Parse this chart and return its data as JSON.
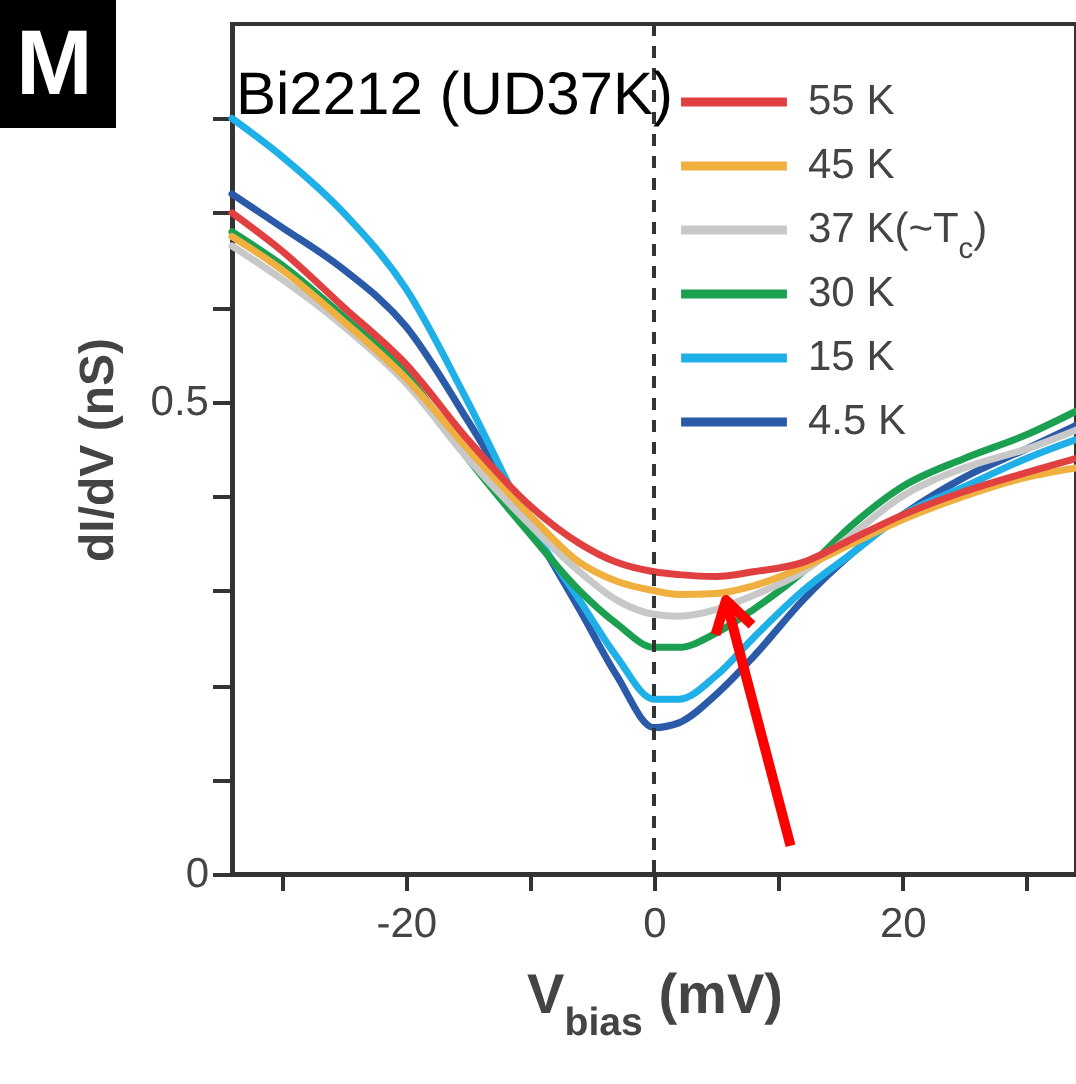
{
  "chart_data": {
    "type": "line",
    "title": "Bi2212 (UD37K)",
    "xlabel": "V$_{bias}$ (mV)",
    "ylabel": "dI/dV (nS)",
    "annotations": [
      "M"
    ],
    "x": [
      -34,
      -30,
      -25,
      -20,
      -15,
      -10,
      -6,
      -3,
      0,
      2,
      5,
      8,
      12,
      16,
      20,
      25,
      30,
      34
    ],
    "series": [
      {
        "name": "55 K",
        "color": "#e0403f",
        "values": [
          0.7,
          0.66,
          0.6,
          0.54,
          0.46,
          0.39,
          0.35,
          0.33,
          0.32,
          0.317,
          0.315,
          0.32,
          0.33,
          0.355,
          0.38,
          0.405,
          0.425,
          0.44
        ]
      },
      {
        "name": "45 K",
        "color": "#f0b040",
        "values": [
          0.675,
          0.64,
          0.585,
          0.525,
          0.45,
          0.38,
          0.33,
          0.31,
          0.3,
          0.296,
          0.297,
          0.305,
          0.325,
          0.35,
          0.375,
          0.4,
          0.42,
          0.43
        ]
      },
      {
        "name": "37 K(~T$_{c}$)",
        "color": "#c8c8c8",
        "values": [
          0.665,
          0.63,
          0.58,
          0.52,
          0.44,
          0.37,
          0.32,
          0.29,
          0.275,
          0.273,
          0.28,
          0.295,
          0.32,
          0.36,
          0.4,
          0.43,
          0.45,
          0.47
        ]
      },
      {
        "name": "30 K",
        "color": "#1aa050",
        "values": [
          0.68,
          0.645,
          0.59,
          0.53,
          0.44,
          0.36,
          0.3,
          0.265,
          0.24,
          0.24,
          0.255,
          0.28,
          0.32,
          0.37,
          0.41,
          0.44,
          0.465,
          0.49
        ]
      },
      {
        "name": "15 K",
        "color": "#20b0e8",
        "values": [
          0.8,
          0.76,
          0.7,
          0.62,
          0.5,
          0.37,
          0.29,
          0.23,
          0.185,
          0.185,
          0.21,
          0.25,
          0.3,
          0.34,
          0.38,
          0.41,
          0.44,
          0.46
        ]
      },
      {
        "name": "4.5 K",
        "color": "#2a5aa8",
        "values": [
          0.72,
          0.685,
          0.64,
          0.58,
          0.48,
          0.37,
          0.28,
          0.21,
          0.155,
          0.16,
          0.19,
          0.23,
          0.29,
          0.34,
          0.38,
          0.42,
          0.45,
          0.475
        ]
      }
    ],
    "xlim": [
      -34,
      34
    ],
    "ylim": [
      0,
      0.9
    ],
    "xticks": [
      {
        "value": -30,
        "label": null
      },
      -20,
      {
        "value": -10,
        "label": null
      },
      0,
      {
        "value": 10,
        "label": null
      },
      20,
      {
        "value": 30,
        "label": null
      }
    ],
    "yticks": [
      0,
      {
        "value": 0.1,
        "label": null
      },
      {
        "value": 0.2,
        "label": null
      },
      {
        "value": 0.3,
        "label": null
      },
      {
        "value": 0.4,
        "label": null
      },
      0.5,
      {
        "value": 0.6,
        "label": null
      },
      {
        "value": 0.7,
        "label": null
      },
      {
        "value": 0.8,
        "label": null
      }
    ],
    "ref_lines": [
      {
        "axis": "x",
        "value": 0,
        "color": "#333333",
        "line_style": "dashed"
      }
    ],
    "legend": "top right",
    "grid": false,
    "line_style": "solid",
    "marker": "none"
  }
}
